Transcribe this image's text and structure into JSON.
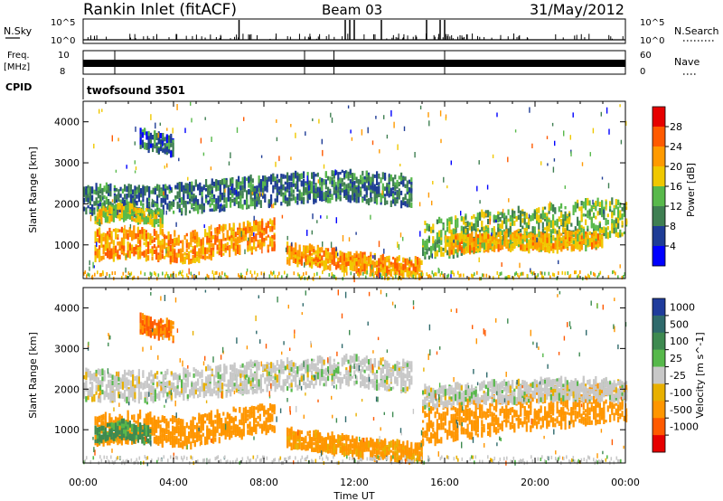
{
  "header": {
    "station": "Rankin Inlet (fitACF)",
    "beam": "Beam 03",
    "date": "31/May/2012"
  },
  "top_panels": {
    "nsky_label": "N.Sky",
    "nsearch_label": "N.Search",
    "nsky_ticks": [
      "10^5",
      "10^0"
    ],
    "nsearch_ticks": [
      "10^5",
      "10^0"
    ],
    "freq_label": "Freq.",
    "freq_unit": "[MHz]",
    "freq_ticks": [
      "10",
      "8"
    ],
    "nave_label": "Nave",
    "nave_ticks": [
      "60",
      "0"
    ],
    "cpid_label": "CPID",
    "cpid_value": "twofsound 3501"
  },
  "colors": {
    "power_scale": [
      "#0000ff",
      "#1e3c96",
      "#3f7f52",
      "#58b94b",
      "#f0c800",
      "#ff9a00",
      "#ff5a00",
      "#e60000"
    ],
    "velocity_scale": [
      "#1f3c9c",
      "#2f6a6c",
      "#3e8a50",
      "#56b84a",
      "#c8c8c8",
      "#e8b000",
      "#ff9600",
      "#ff5a00",
      "#e60000"
    ]
  },
  "chart_data": [
    {
      "type": "heatmap",
      "title": "",
      "xlabel": "",
      "ylabel": "Slant Range [km]",
      "xlim": [
        0,
        24
      ],
      "ylim": [
        180,
        4500
      ],
      "x_ticks": [
        "00:00",
        "04:00",
        "08:00",
        "12:00",
        "16:00",
        "20:00",
        "00:00"
      ],
      "y_ticks": [
        1000,
        2000,
        3000,
        4000
      ],
      "colorbar_label": "Power [dB]",
      "colorbar_ticks": [
        4,
        8,
        12,
        16,
        20,
        24,
        28
      ],
      "colorbar_range": [
        0,
        32
      ],
      "bands": [
        {
          "x_range": [
            0.0,
            14.5
          ],
          "center": [
            2100,
            2050,
            2200,
            2350,
            2450,
            2300
          ],
          "width": 350,
          "value": 9
        },
        {
          "x_range": [
            0.5,
            8.5
          ],
          "center": [
            1000,
            1050,
            900,
            1150,
            1250
          ],
          "width": 350,
          "value": 22
        },
        {
          "x_range": [
            9.0,
            15.0
          ],
          "center": [
            800,
            650,
            500,
            430
          ],
          "width": 220,
          "value": 22
        },
        {
          "x_range": [
            15.0,
            24.0
          ],
          "center": [
            1100,
            1250,
            1400,
            1500,
            1600,
            1700
          ],
          "width": 450,
          "value": 14
        },
        {
          "x_range": [
            16.0,
            23.0
          ],
          "center": [
            1000,
            1100,
            1050,
            1150
          ],
          "width": 200,
          "value": 20
        },
        {
          "x_range": [
            0.5,
            3.5
          ],
          "center": [
            1700,
            1800,
            1600
          ],
          "width": 180,
          "value": 17
        },
        {
          "x_range": [
            2.5,
            4.0
          ],
          "center": [
            3600,
            3500,
            3400
          ],
          "width": 220,
          "value": 8
        }
      ]
    },
    {
      "type": "heatmap",
      "title": "",
      "xlabel": "Time UT",
      "ylabel": "Slant Range [km]",
      "xlim": [
        0,
        24
      ],
      "ylim": [
        180,
        4500
      ],
      "x_ticks": [
        "00:00",
        "04:00",
        "08:00",
        "12:00",
        "16:00",
        "20:00",
        "00:00"
      ],
      "y_ticks": [
        1000,
        2000,
        3000,
        4000
      ],
      "colorbar_label": "Velocity [m s^-1]",
      "colorbar_ticks": [
        1000,
        500,
        100,
        25,
        -25,
        -100,
        -500,
        -1000
      ],
      "colorbar_range": [
        -1200,
        1200
      ],
      "bands": [
        {
          "x_range": [
            0.0,
            14.5
          ],
          "center": [
            2100,
            2050,
            2200,
            2350,
            2450,
            2300
          ],
          "width": 350,
          "value": 0
        },
        {
          "x_range": [
            0.5,
            8.5
          ],
          "center": [
            1000,
            1050,
            900,
            1150,
            1250
          ],
          "width": 350,
          "value": -300
        },
        {
          "x_range": [
            0.5,
            3.0
          ],
          "center": [
            900,
            1000,
            850
          ],
          "width": 200,
          "value": 150
        },
        {
          "x_range": [
            9.0,
            15.0
          ],
          "center": [
            800,
            650,
            500,
            430
          ],
          "width": 220,
          "value": -150
        },
        {
          "x_range": [
            15.0,
            24.0
          ],
          "center": [
            1100,
            1250,
            1400,
            1500,
            1600,
            1700
          ],
          "width": 450,
          "value": -250
        },
        {
          "x_range": [
            15.0,
            24.0
          ],
          "center": [
            1800,
            1900,
            2000,
            1950
          ],
          "width": 250,
          "value": 0
        },
        {
          "x_range": [
            2.5,
            4.0
          ],
          "center": [
            3600,
            3500,
            3400
          ],
          "width": 220,
          "value": -500
        }
      ]
    }
  ]
}
